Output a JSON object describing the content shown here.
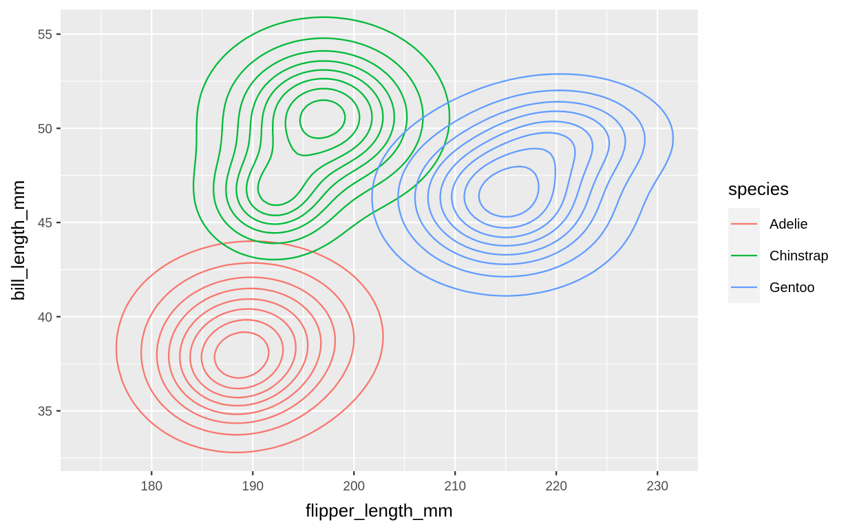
{
  "chart_data": {
    "type": "density_2d",
    "xlabel": "flipper_length_mm",
    "ylabel": "bill_length_mm",
    "xlim": [
      171,
      234
    ],
    "ylim": [
      31.8,
      56.3
    ],
    "x_ticks": [
      180,
      190,
      200,
      210,
      220,
      230
    ],
    "y_ticks": [
      35,
      40,
      45,
      50,
      55
    ],
    "grid": true,
    "legend": {
      "title": "species",
      "placement": "right"
    },
    "series": [
      {
        "name": "Adelie",
        "color": "#F8766D",
        "peaks": [
          {
            "x": 190,
            "y": 39.0,
            "sx": 5.9,
            "sy": 2.3,
            "w": 1.0
          },
          {
            "x": 188,
            "y": 37.0,
            "sx": 4.5,
            "sy": 1.9,
            "w": 0.8
          }
        ],
        "levels": [
          0.06,
          0.16,
          0.27,
          0.38,
          0.5,
          0.62,
          0.75,
          0.88
        ]
      },
      {
        "name": "Chinstrap",
        "color": "#00BA38",
        "peaks": [
          {
            "x": 197,
            "y": 50.6,
            "sx": 5.4,
            "sy": 2.3,
            "w": 1.0
          },
          {
            "x": 192,
            "y": 46.4,
            "sx": 3.6,
            "sy": 1.6,
            "w": 0.62
          }
        ],
        "levels": [
          0.07,
          0.19,
          0.31,
          0.43,
          0.55,
          0.67,
          0.8,
          0.92
        ]
      },
      {
        "name": "Gentoo",
        "color": "#619CFF",
        "peaks": [
          {
            "x": 215,
            "y": 46.3,
            "sx": 5.6,
            "sy": 2.2,
            "w": 1.0
          },
          {
            "x": 221,
            "y": 49.6,
            "sx": 5.2,
            "sy": 1.6,
            "w": 0.45
          }
        ],
        "levels": [
          0.06,
          0.16,
          0.27,
          0.38,
          0.5,
          0.62,
          0.75,
          0.88
        ]
      }
    ]
  }
}
